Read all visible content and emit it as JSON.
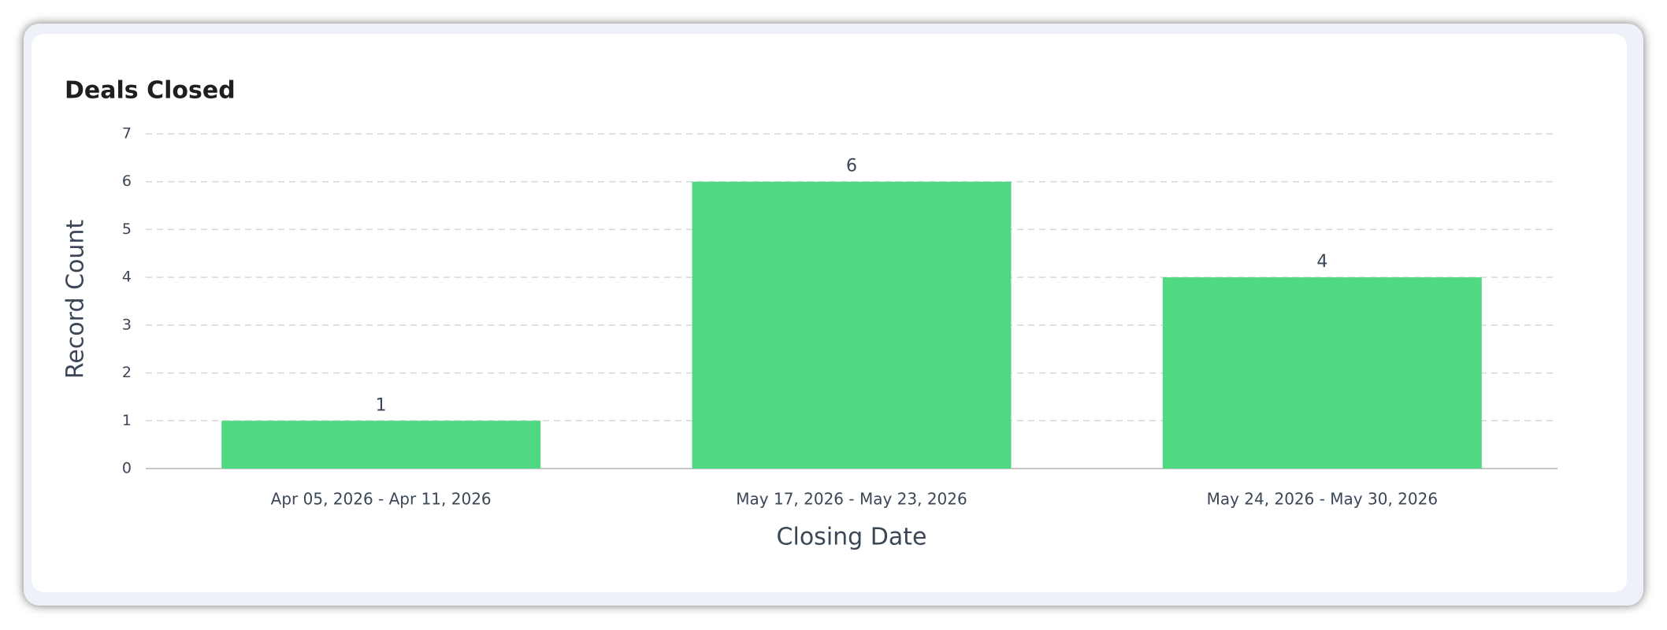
{
  "chart_data": {
    "type": "bar",
    "title": "Deals Closed",
    "x_label": "Closing Date",
    "y_label": "Record Count",
    "categories": [
      "Apr 05, 2026 - Apr 11, 2026",
      "May 17, 2026 - May 23, 2026",
      "May 24, 2026 - May 30, 2026"
    ],
    "values": [
      1,
      6,
      4
    ],
    "color": "#50d982",
    "ylim": [
      0,
      7
    ],
    "yticks": [
      0,
      1,
      2,
      3,
      4,
      5,
      6,
      7
    ],
    "grid": true
  }
}
